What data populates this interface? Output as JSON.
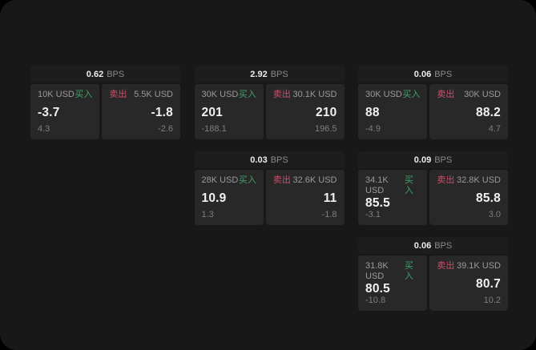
{
  "page": {
    "outer_background": "#000000",
    "background": "#181818"
  },
  "labels": {
    "bps_unit": "BPS",
    "buy": "买入",
    "sell": "卖出"
  },
  "colors": {
    "buy_green": "#3fa269",
    "sell_red": "#cf4f6b",
    "card_header_bg": "#1d1d1d",
    "tile_bg": "#282828"
  },
  "cards": [
    {
      "bps": "0.62",
      "buy": {
        "notional": "10K USD",
        "value": "-3.7",
        "sub": "4.3"
      },
      "sell": {
        "notional": "5.5K USD",
        "value": "-1.8",
        "sub": "-2.6"
      }
    },
    {
      "bps": "2.92",
      "buy": {
        "notional": "30K USD",
        "value": "201",
        "sub": "-188.1"
      },
      "sell": {
        "notional": "30.1K USD",
        "value": "210",
        "sub": "196.5"
      }
    },
    {
      "bps": "0.06",
      "buy": {
        "notional": "30K USD",
        "value": "88",
        "sub": "-4.9"
      },
      "sell": {
        "notional": "30K USD",
        "value": "88.2",
        "sub": "4.7"
      }
    },
    {
      "bps": "0.03",
      "buy": {
        "notional": "28K USD",
        "value": "10.9",
        "sub": "1.3"
      },
      "sell": {
        "notional": "32.6K USD",
        "value": "11",
        "sub": "-1.8"
      }
    },
    {
      "bps": "0.09",
      "buy": {
        "notional": "34.1K USD",
        "value": "85.5",
        "sub": "-3.1"
      },
      "sell": {
        "notional": "32.8K USD",
        "value": "85.8",
        "sub": "3.0"
      }
    },
    {
      "bps": "0.06",
      "buy": {
        "notional": "31.8K USD",
        "value": "80.5",
        "sub": "-10.8"
      },
      "sell": {
        "notional": "39.1K USD",
        "value": "80.7",
        "sub": "10.2"
      }
    }
  ]
}
